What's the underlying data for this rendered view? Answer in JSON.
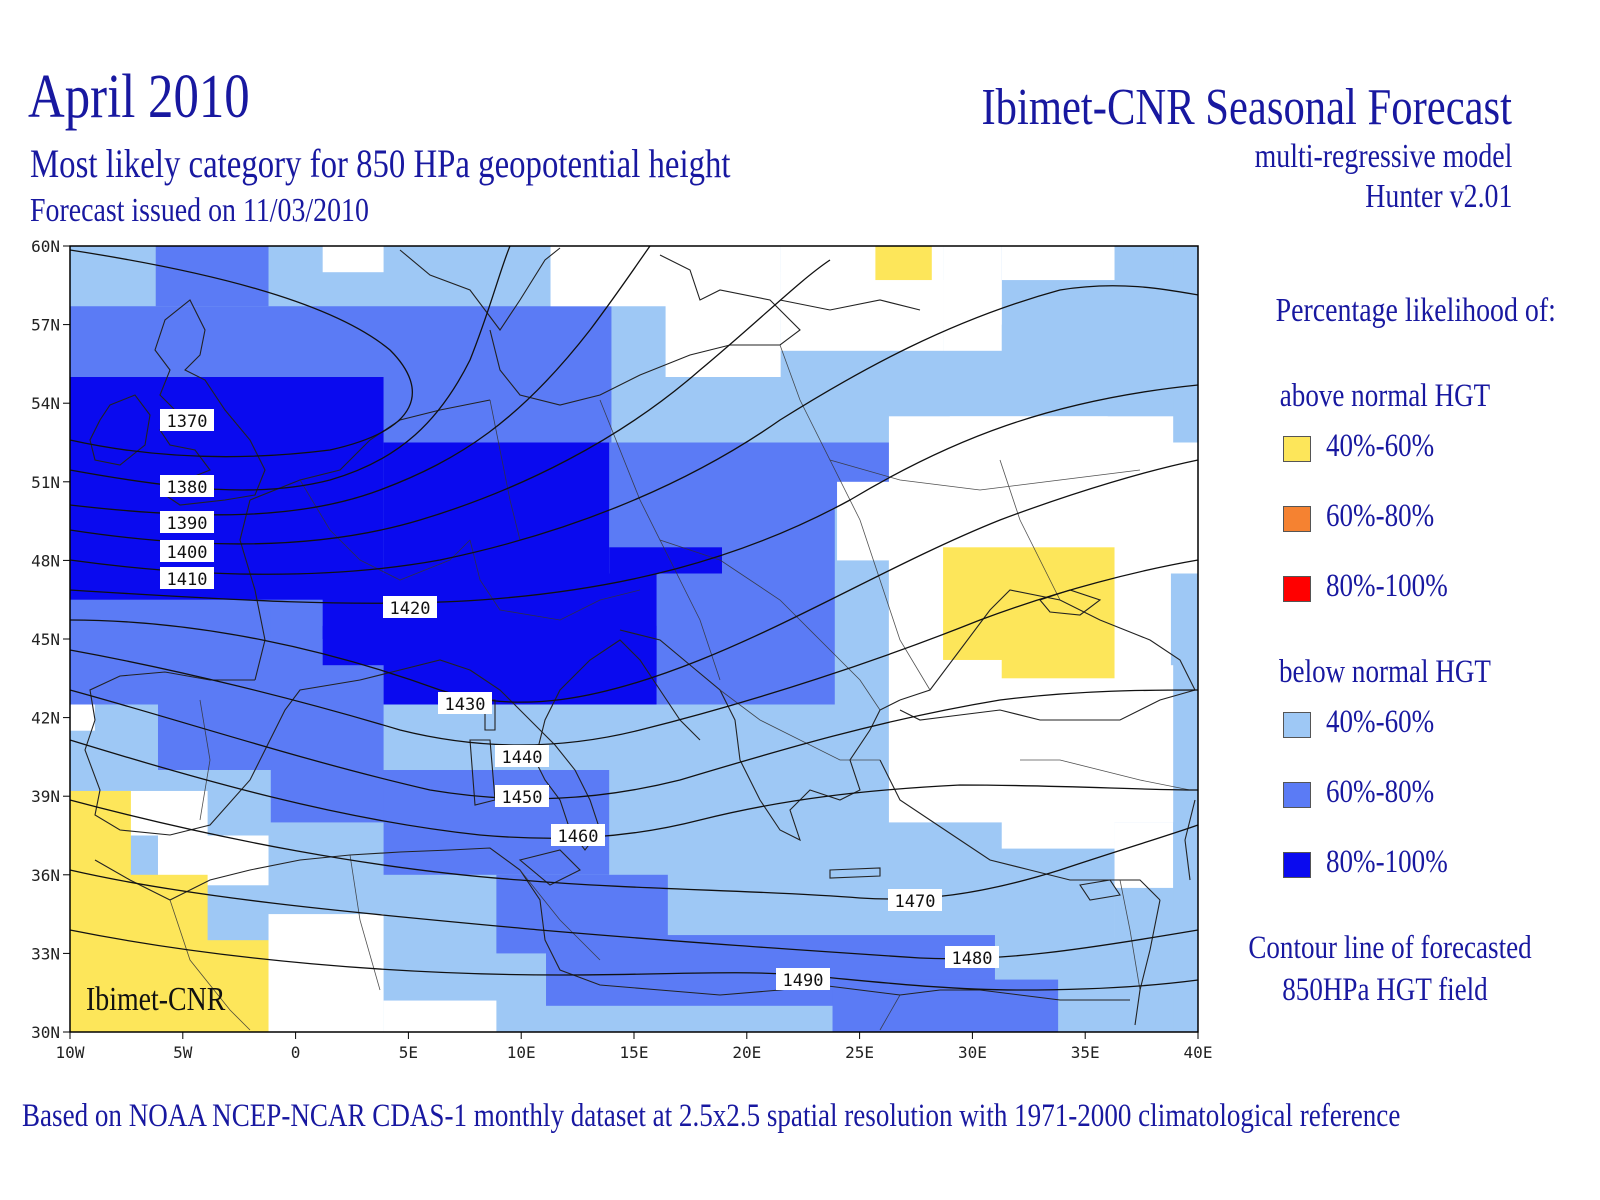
{
  "header": {
    "title": "April 2010",
    "subtitle": "Most likely category for 850 HPa geopotential height",
    "issued": "Forecast issued on 11/03/2010",
    "org_title": "Ibimet-CNR Seasonal Forecast",
    "model": "multi-regressive model",
    "version": "Hunter v2.01"
  },
  "map": {
    "watermark": "Ibimet-CNR",
    "lon_ticks": [
      "10W",
      "5W",
      "0",
      "5E",
      "10E",
      "15E",
      "20E",
      "25E",
      "30E",
      "35E",
      "40E"
    ],
    "lat_ticks": [
      "60N",
      "57N",
      "54N",
      "51N",
      "48N",
      "45N",
      "42N",
      "39N",
      "36N",
      "33N",
      "30N"
    ],
    "extent": {
      "lon": [
        -10,
        40
      ],
      "lat": [
        30,
        60
      ]
    },
    "contour_labels": [
      "1370",
      "1380",
      "1390",
      "1400",
      "1410",
      "1420",
      "1430",
      "1440",
      "1450",
      "1460",
      "1470",
      "1480",
      "1490"
    ],
    "colors": {
      "above_40_60": "#fde65a",
      "above_60_80": "#f58231",
      "above_80_100": "#ff0000",
      "below_40_60": "#9ec8f5",
      "below_60_80": "#5b7bf5",
      "below_80_100": "#0a0aef"
    }
  },
  "legend": {
    "heading": "Percentage likelihood of:",
    "above_title": "above normal HGT",
    "below_title": "below normal HGT",
    "above_items": [
      {
        "label": "40%-60%",
        "color": "#fde65a"
      },
      {
        "label": "60%-80%",
        "color": "#f58231"
      },
      {
        "label": "80%-100%",
        "color": "#ff0000"
      }
    ],
    "below_items": [
      {
        "label": "40%-60%",
        "color": "#9ec8f5"
      },
      {
        "label": "60%-80%",
        "color": "#5b7bf5"
      },
      {
        "label": "80%-100%",
        "color": "#0a0aef"
      }
    ],
    "contour_note_1": "Contour line of forecasted",
    "contour_note_2": "850HPa HGT field"
  },
  "footer": "Based on NOAA NCEP-NCAR CDAS-1 monthly dataset at 2.5x2.5 spatial resolution with 1971-2000 climatological reference"
}
